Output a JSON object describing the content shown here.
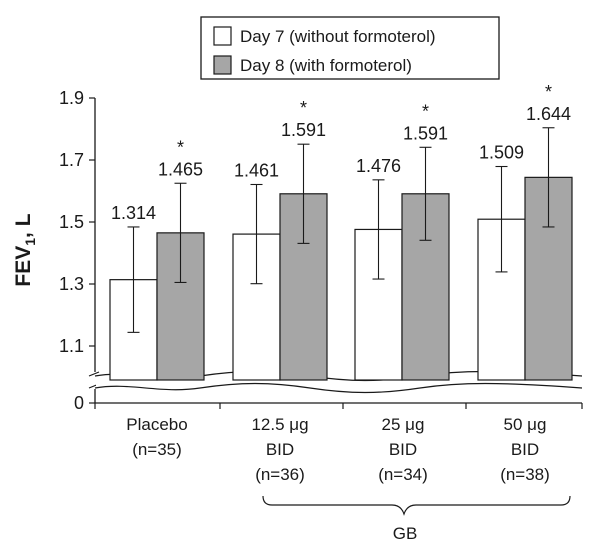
{
  "chart_data": {
    "type": "bar",
    "ylabel": {
      "main": "FEV",
      "subscript": "1",
      "suffix": ", L"
    },
    "y_ticks": [
      "1.9",
      "1.7",
      "1.5",
      "1.3",
      "1.1",
      "0"
    ],
    "ylim": [
      1.0,
      1.9
    ],
    "axis_break": true,
    "categories": [
      {
        "lines": [
          "Placebo",
          "(n=35)"
        ]
      },
      {
        "lines": [
          "12.5 μg",
          "BID",
          "(n=36)"
        ]
      },
      {
        "lines": [
          "25 μg",
          "BID",
          "(n=34)"
        ]
      },
      {
        "lines": [
          "50 μg",
          "BID",
          "(n=38)"
        ]
      }
    ],
    "group_label": "GB",
    "group_categories": [
      1,
      2,
      3
    ],
    "series": [
      {
        "name": "Day 7 (without formoterol)",
        "color": "#ffffff",
        "values": [
          1.314,
          1.461,
          1.476,
          1.509
        ],
        "value_labels": [
          "1.314",
          "1.461",
          "1.476",
          "1.509"
        ],
        "error": [
          0.17,
          0.16,
          0.16,
          0.17
        ],
        "significant": [
          false,
          false,
          false,
          false
        ]
      },
      {
        "name": "Day 8 (with formoterol)",
        "color": "#a6a6a6",
        "values": [
          1.465,
          1.591,
          1.591,
          1.644
        ],
        "value_labels": [
          "1.465",
          "1.591",
          "1.591",
          "1.644"
        ],
        "error": [
          0.16,
          0.16,
          0.15,
          0.16
        ],
        "significant": [
          true,
          true,
          true,
          true
        ]
      }
    ],
    "significance_marker": "*",
    "legend_position": "top-center"
  }
}
